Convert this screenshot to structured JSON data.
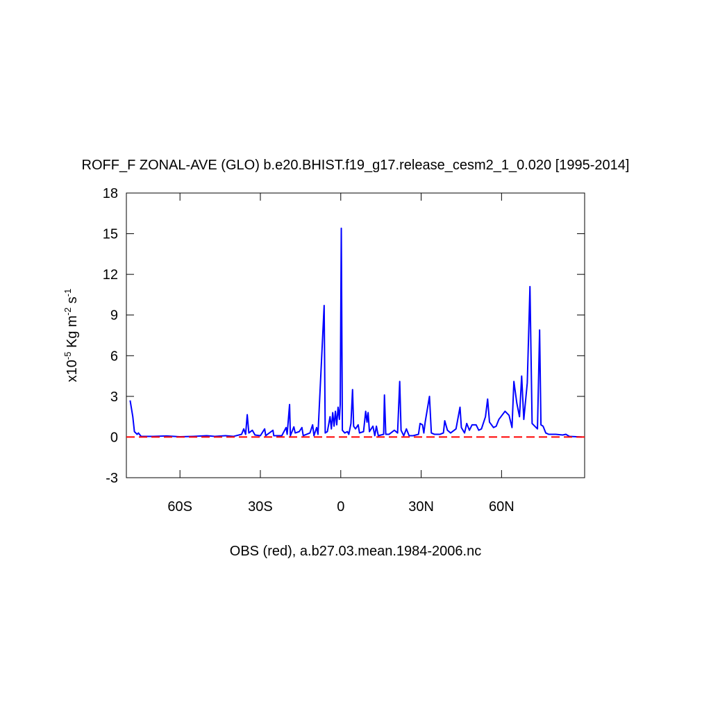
{
  "chart_data": {
    "type": "line",
    "title": "ROFF_F ZONAL-AVE (GLO) b.e20.BHIST.f19_g17.release_cesm2_1_0.020 [1995-2014]",
    "ylabel": [
      "x10",
      "-5",
      " Kg m",
      "-2",
      " s",
      "-1"
    ],
    "xlabel": "OBS (red), a.b27.03.mean.1984-2006.nc",
    "xlim": [
      -80,
      91
    ],
    "xticks": [
      {
        "value": -60,
        "label": "60S"
      },
      {
        "value": -30,
        "label": "30S"
      },
      0,
      {
        "value": 30,
        "label": "30N"
      },
      {
        "value": 60,
        "label": "60N"
      }
    ],
    "ylim": [
      -3,
      18
    ],
    "yticks": [
      -3,
      0,
      3,
      6,
      9,
      12,
      15,
      18
    ],
    "series": [
      {
        "color": "#0000ff",
        "dashed": false,
        "x": [
          -78.6,
          -77.6,
          -77,
          -76,
          -75.5,
          -74.5,
          -70,
          -65,
          -60,
          -55,
          -50,
          -47,
          -43,
          -40,
          -37,
          -36.2,
          -35.5,
          -34.9,
          -34.3,
          -33,
          -32,
          -30,
          -28.4,
          -28,
          -25.3,
          -25,
          -22,
          -20.4,
          -20,
          -19.1,
          -18.8,
          -17.5,
          -17,
          -15.5,
          -14.5,
          -14,
          -11.5,
          -10.5,
          -10,
          -9,
          -8.5,
          -6.2,
          -5.8,
          -5,
          -4,
          -3.5,
          -3,
          -2.5,
          -2,
          -1.5,
          -1,
          -0.5,
          -0.2,
          0.2,
          0.6,
          1.5,
          2.5,
          3,
          3.8,
          4.4,
          4.8,
          5.5,
          6.5,
          7,
          8.5,
          9.3,
          9.8,
          10.2,
          10.7,
          12,
          12.7,
          13.3,
          14,
          16,
          16.3,
          16.8,
          18,
          20,
          21.2,
          22,
          22.5,
          23.5,
          24.5,
          25.5,
          27,
          29,
          29.6,
          30.5,
          31,
          31.5,
          33.1,
          33.8,
          35,
          37,
          38.3,
          38.8,
          39.8,
          41,
          43,
          44.5,
          45,
          46.2,
          47,
          48,
          49,
          50.5,
          51.5,
          52.5,
          54,
          54.8,
          55.5,
          57,
          58,
          59,
          61.3,
          62.8,
          63.9,
          64.6,
          65.7,
          66.7,
          67.5,
          68.3,
          69.6,
          70.6,
          71.4,
          72.4,
          73.4,
          74.2,
          74.7,
          75.5,
          76.5,
          77.6,
          80.2,
          82.8,
          84,
          85.3,
          90
        ],
        "values": [
          2.7,
          1.5,
          0.4,
          0.2,
          0.3,
          0.05,
          0.05,
          0.08,
          0.02,
          0.05,
          0.1,
          0.05,
          0.1,
          0.05,
          0.2,
          0.6,
          0.2,
          1.65,
          0.3,
          0.5,
          0.15,
          0.1,
          0.6,
          0.1,
          0.5,
          0.1,
          0.1,
          0.7,
          0.2,
          2.4,
          0.1,
          0.75,
          0.3,
          0.4,
          0.7,
          0.1,
          0.3,
          0.9,
          0.1,
          0.7,
          0.2,
          9.7,
          0.3,
          0.4,
          1.5,
          0.6,
          1.8,
          0.8,
          1.9,
          0.9,
          2.2,
          1.3,
          2.4,
          15.4,
          0.5,
          0.3,
          0.4,
          0.2,
          1.0,
          3.5,
          0.8,
          0.6,
          0.9,
          0.3,
          0.4,
          1.9,
          1.1,
          1.8,
          0.4,
          0.8,
          0.1,
          0.8,
          0.1,
          0.2,
          3.1,
          0.2,
          0.2,
          0.5,
          0.3,
          4.1,
          0.5,
          0.1,
          0.6,
          0.1,
          0.1,
          0.2,
          1.0,
          0.9,
          0.3,
          1.1,
          3.0,
          0.3,
          0.2,
          0.2,
          0.3,
          1.2,
          0.5,
          0.3,
          0.6,
          2.2,
          0.7,
          0.3,
          1.0,
          0.5,
          0.9,
          0.9,
          0.5,
          0.6,
          1.5,
          2.8,
          1.1,
          0.7,
          0.8,
          1.3,
          1.9,
          1.6,
          0.7,
          4.1,
          2.5,
          1.5,
          4.5,
          1.3,
          4.0,
          11.1,
          1.0,
          0.8,
          0.6,
          7.9,
          0.9,
          0.8,
          0.3,
          0.2,
          0.2,
          0.15,
          0.2,
          0.05,
          0
        ]
      },
      {
        "color": "#ff0000",
        "dashed": true,
        "x": [
          -80,
          91
        ],
        "values": [
          0,
          0
        ]
      }
    ]
  }
}
